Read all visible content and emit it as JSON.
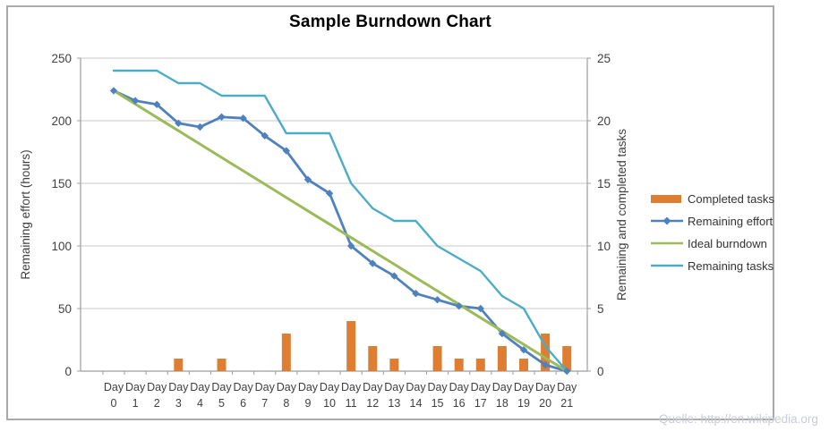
{
  "title": "Sample Burndown Chart",
  "watermark": "Quelle: http://en.wikipedia.org",
  "colors": {
    "grid": "#c8c8c8",
    "axis": "#9e9e9e",
    "frame": "#a9a9a9",
    "text": "#3f3f3f",
    "watermark": "#c9cbd9",
    "bar": "#dd7e32",
    "effort": "#4f81bd",
    "ideal": "#9bbb59",
    "tasks": "#4bacc6"
  },
  "chart_data": {
    "type": "combo",
    "title": "Sample Burndown Chart",
    "categories": [
      "Day 0",
      "Day 1",
      "Day 2",
      "Day 3",
      "Day 4",
      "Day 5",
      "Day 6",
      "Day 7",
      "Day 8",
      "Day 9",
      "Day 10",
      "Day 11",
      "Day 12",
      "Day 13",
      "Day 14",
      "Day 15",
      "Day 16",
      "Day 17",
      "Day 18",
      "Day 19",
      "Day 20",
      "Day 21"
    ],
    "left_axis": {
      "label": "Remaining effort (hours)",
      "min": 0,
      "max": 250,
      "ticks": [
        0,
        50,
        100,
        150,
        200,
        250
      ]
    },
    "right_axis": {
      "label": "Remaining and completed tasks",
      "min": 0,
      "max": 25,
      "ticks": [
        0,
        5,
        10,
        15,
        20,
        25
      ]
    },
    "grid": true,
    "legend_position": "right",
    "series": [
      {
        "name": "Completed tasks",
        "type": "bar",
        "axis": "right",
        "color": "#dd7e32",
        "values": [
          0,
          0,
          0,
          1,
          0,
          1,
          0,
          0,
          3,
          0,
          0,
          4,
          2,
          1,
          0,
          2,
          1,
          1,
          2,
          1,
          3,
          2
        ]
      },
      {
        "name": "Remaining effort",
        "type": "line",
        "marker": "diamond",
        "axis": "left",
        "color": "#4f81bd",
        "values": [
          224,
          216,
          213,
          198,
          195,
          203,
          202,
          188,
          176,
          153,
          142,
          100,
          86,
          76,
          62,
          57,
          52,
          50,
          30,
          17,
          5,
          0
        ]
      },
      {
        "name": "Ideal burndown",
        "type": "line",
        "axis": "left",
        "color": "#9bbb59",
        "values": [
          224,
          213.33,
          202.67,
          192,
          181.33,
          170.67,
          160,
          149.33,
          138.67,
          128,
          117.33,
          106.67,
          96,
          85.33,
          74.67,
          64,
          53.33,
          42.67,
          32,
          21.33,
          10.67,
          0
        ]
      },
      {
        "name": "Remaining tasks",
        "type": "line",
        "axis": "right",
        "color": "#4bacc6",
        "values": [
          24,
          24,
          24,
          23,
          23,
          22,
          22,
          22,
          19,
          19,
          19,
          15,
          13,
          12,
          12,
          10,
          9,
          8,
          6,
          5,
          2,
          0
        ]
      }
    ]
  }
}
